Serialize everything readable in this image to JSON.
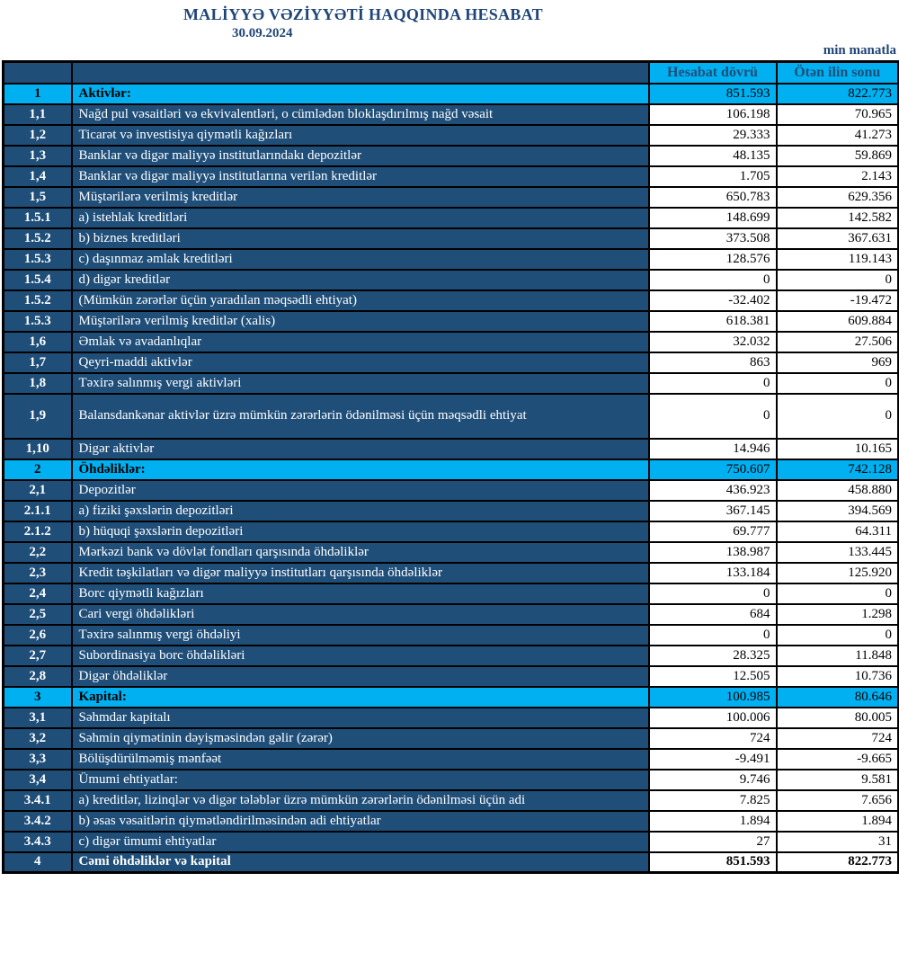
{
  "report": {
    "title": "MALİYYƏ VƏZİYYƏTİ HAQQINDA HESABAT",
    "date": "30.09.2024",
    "unit_note": "min manatla"
  },
  "colors": {
    "navy": "#1F4E79",
    "cyan": "#00B0F0",
    "title_text": "#1F4577"
  },
  "table": {
    "columns": {
      "number": "",
      "label": "",
      "current": "Hesabat dövrü",
      "previous": "Ötən ilin sonu"
    },
    "rows": [
      {
        "num": "1",
        "label": "Aktivlər:",
        "current": "851.593",
        "previous": "822.773",
        "type": "section"
      },
      {
        "num": "1,1",
        "label": "Nağd pul vəsaitləri və  ekvivalentləri, o cümlədən bloklaşdırılmış nağd vəsait",
        "current": "106.198",
        "previous": "70.965"
      },
      {
        "num": "1,2",
        "label": "Ticarət və investisiya qiymətli kağızları",
        "current": "29.333",
        "previous": "41.273"
      },
      {
        "num": "1,3",
        "label": "Banklar və digər maliyyə institutlarındakı depozitlər",
        "current": "48.135",
        "previous": "59.869"
      },
      {
        "num": "1,4",
        "label": "Banklar və digər maliyyə institutlarına verilən kreditlər",
        "current": "1.705",
        "previous": "2.143"
      },
      {
        "num": "1,5",
        "label": "Müştərilərə verilmiş kreditlər",
        "current": "650.783",
        "previous": "629.356"
      },
      {
        "num": "1.5.1",
        "label": "a) istehlak kreditləri",
        "current": "148.699",
        "previous": "142.582"
      },
      {
        "num": "1.5.2",
        "label": "b) biznes kreditləri",
        "current": "373.508",
        "previous": "367.631"
      },
      {
        "num": "1.5.3",
        "label": "c) daşınmaz əmlak kreditləri",
        "current": "128.576",
        "previous": "119.143"
      },
      {
        "num": "1.5.4",
        "label": "d) digər kreditlər",
        "current": "0",
        "previous": "0"
      },
      {
        "num": "1.5.2",
        "label": "(Mümkün zərərlər üçün yaradılan məqsədli ehtiyat)",
        "current": "-32.402",
        "previous": "-19.472"
      },
      {
        "num": "1.5.3",
        "label": "Müştərilərə verilmiş kreditlər (xalis)",
        "current": "618.381",
        "previous": "609.884"
      },
      {
        "num": "1,6",
        "label": "Əmlak və avadanlıqlar",
        "current": "32.032",
        "previous": "27.506"
      },
      {
        "num": "1,7",
        "label": "Qeyri-maddi aktivlər",
        "current": "863",
        "previous": "969"
      },
      {
        "num": "1,8",
        "label": "Təxirə salınmış vergi aktivləri",
        "current": "0",
        "previous": "0"
      },
      {
        "num": "1,9",
        "label": "Balansdankənar aktivlər üzrə mümkün zərərlərin ödənilməsi üçün məqsədli ehtiyat",
        "current": "0",
        "previous": "0",
        "tall": true
      },
      {
        "num": "1,10",
        "label": "Digər aktivlər",
        "current": "14.946",
        "previous": "10.165"
      },
      {
        "num": "2",
        "label": "Öhdəliklər:",
        "current": "750.607",
        "previous": "742.128",
        "type": "section"
      },
      {
        "num": "2,1",
        "label": "Depozitlər",
        "current": "436.923",
        "previous": "458.880"
      },
      {
        "num": "2.1.1",
        "label": "a) fiziki şəxslərin depozitləri",
        "current": "367.145",
        "previous": "394.569"
      },
      {
        "num": "2.1.2",
        "label": "b) hüquqi şəxslərin depozitləri",
        "current": "69.777",
        "previous": "64.311"
      },
      {
        "num": "2,2",
        "label": "Mərkəzi bank və dövlət fondları qarşısında öhdəliklər",
        "current": "138.987",
        "previous": "133.445"
      },
      {
        "num": "2,3",
        "label": "Kredit təşkilatları və digər maliyyə institutları qarşısında öhdəliklər",
        "current": "133.184",
        "previous": "125.920"
      },
      {
        "num": "2,4",
        "label": "Borc qiymətli kağızları",
        "current": "0",
        "previous": "0"
      },
      {
        "num": "2,5",
        "label": "Cari vergi öhdəlikləri",
        "current": "684",
        "previous": "1.298"
      },
      {
        "num": "2,6",
        "label": "Təxirə salınmış vergi öhdəliyi",
        "current": "0",
        "previous": "0"
      },
      {
        "num": "2,7",
        "label": "Subordinasiya borc öhdəlikləri",
        "current": "28.325",
        "previous": "11.848"
      },
      {
        "num": "2,8",
        "label": "Digər öhdəliklər",
        "current": "12.505",
        "previous": "10.736"
      },
      {
        "num": "3",
        "label": "Kapital:",
        "current": "100.985",
        "previous": "80.646",
        "type": "section"
      },
      {
        "num": "3,1",
        "label": "Səhmdar kapitalı",
        "current": "100.006",
        "previous": "80.005"
      },
      {
        "num": "3,2",
        "label": "Səhmin qiymətinin dəyişməsindən gəlir (zərər)",
        "current": "724",
        "previous": "724"
      },
      {
        "num": "3,3",
        "label": "Bölüşdürülməmiş mənfəət",
        "current": "-9.491",
        "previous": "-9.665"
      },
      {
        "num": "3,4",
        "label": "Ümumi ehtiyatlar:",
        "current": "9.746",
        "previous": "9.581"
      },
      {
        "num": "3.4.1",
        "label": "a) kreditlər, lizinqlər və digər tələblər üzrə mümkün zərərlərin ödənilməsi üçün adi",
        "current": "7.825",
        "previous": "7.656"
      },
      {
        "num": "3.4.2",
        "label": "b) əsas vəsaitlərin qiymətləndirilməsindən adi ehtiyatlar",
        "current": "1.894",
        "previous": "1.894"
      },
      {
        "num": "3.4.3",
        "label": "c) digər ümumi ehtiyatlar",
        "current": "27",
        "previous": "31"
      },
      {
        "num": "4",
        "label": "Cəmi öhdəliklər və kapital",
        "current": "851.593",
        "previous": "822.773",
        "type": "total"
      }
    ]
  }
}
